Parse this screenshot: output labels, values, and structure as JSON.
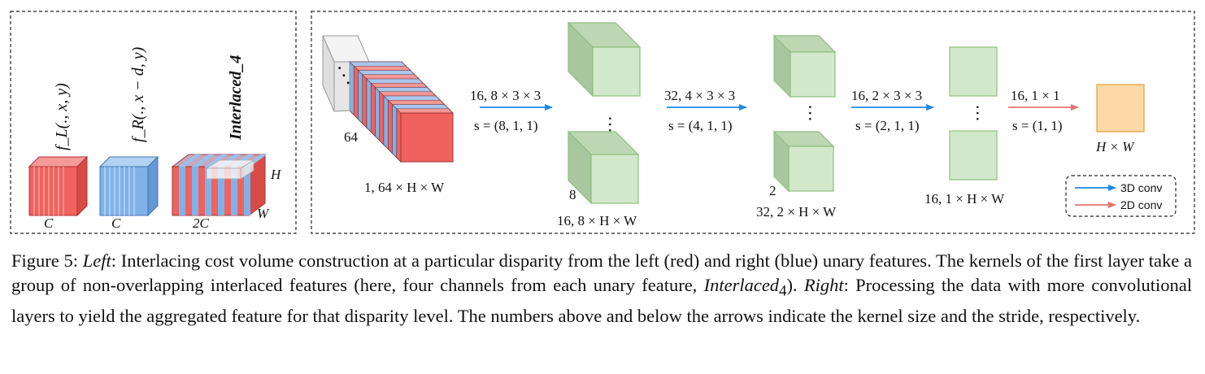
{
  "left": {
    "fl_label": "f_L(., x, y)",
    "fr_label": "f_R(., x − d, y)",
    "interlaced_label": "Interlaced_4",
    "c_left": "C",
    "c_right": "C",
    "c_interlaced": "2C",
    "h_label": "H",
    "w_label": "W"
  },
  "right": {
    "input_channels": "64",
    "input_shape": "1, 64 × H × W",
    "dots": "· · ·",
    "arrows": [
      {
        "kernel": "16, 8 × 3 × 3",
        "stride": "s = (8, 1, 1)",
        "type": "3D conv"
      },
      {
        "kernel": "32, 4 × 3 × 3",
        "stride": "s = (4, 1, 1)",
        "type": "3D conv"
      },
      {
        "kernel": "16, 2 × 3 × 3",
        "stride": "s = (2, 1, 1)",
        "type": "3D conv"
      },
      {
        "kernel": "16, 1 × 1",
        "stride": "s = (1, 1)",
        "type": "2D conv"
      }
    ],
    "stages": [
      {
        "count": "8",
        "shape": "16, 8 × H × W"
      },
      {
        "count": "2",
        "shape": "32, 2 × H × W"
      },
      {
        "count": "",
        "shape": "16, 1 × H × W"
      },
      {
        "count": "",
        "shape": "H × W"
      }
    ]
  },
  "legend": [
    {
      "label": "3D conv",
      "color": "#1e88e5"
    },
    {
      "label": "2D conv",
      "color": "#e57373"
    }
  ],
  "colors": {
    "red": "#f0625d",
    "blue": "#80b2e8",
    "green": "#d2e8cb",
    "green_dark": "#a9c79f",
    "orange": "#fcd9a6"
  },
  "caption": {
    "figure_label": "Figure 5:",
    "left_word": "Left",
    "text1": ": Interlacing cost volume construction at a particular disparity from the left (red) and right (blue) unary features. The kernels of the first layer take a group of non-overlapping interlaced features (here, four channels from each unary feature, ",
    "interlaced_word": "Interlaced",
    "interlaced_sub": "4",
    "text2": "). ",
    "right_word": "Right",
    "text3": ": Processing the data with more convolutional layers to yield the aggregated feature for that disparity level. The numbers above and below the arrows indicate the kernel size and the stride, respectively."
  }
}
